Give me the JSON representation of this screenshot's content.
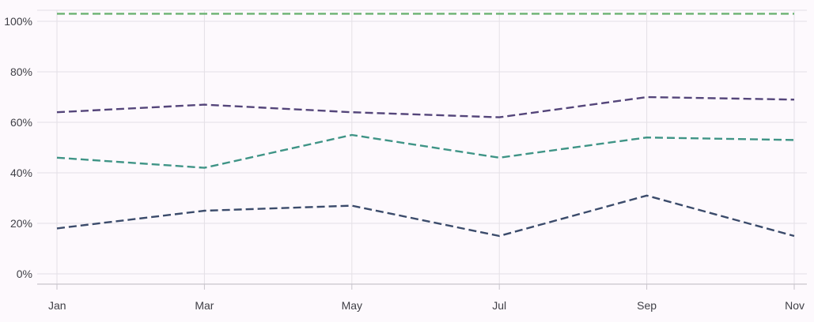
{
  "chart_data": {
    "type": "line",
    "title": "",
    "xlabel": "",
    "ylabel": "",
    "categories": [
      "Jan",
      "Mar",
      "May",
      "Jul",
      "Sep",
      "Nov"
    ],
    "y_ticks": [
      "0%",
      "20%",
      "40%",
      "60%",
      "80%",
      "100%"
    ],
    "ylim": [
      0,
      100
    ],
    "grid": true,
    "legend": "none",
    "series": [
      {
        "color": "#3b4b6b",
        "values": [
          18,
          25,
          27,
          15,
          31,
          15
        ]
      },
      {
        "color": "#3f9486",
        "values": [
          46,
          42,
          55,
          46,
          54,
          53
        ]
      },
      {
        "color": "#54457a",
        "values": [
          64,
          67,
          64,
          62,
          70,
          69
        ]
      },
      {
        "color": "#6bb272",
        "values": [
          103,
          103,
          103,
          103,
          103,
          103
        ]
      }
    ]
  }
}
